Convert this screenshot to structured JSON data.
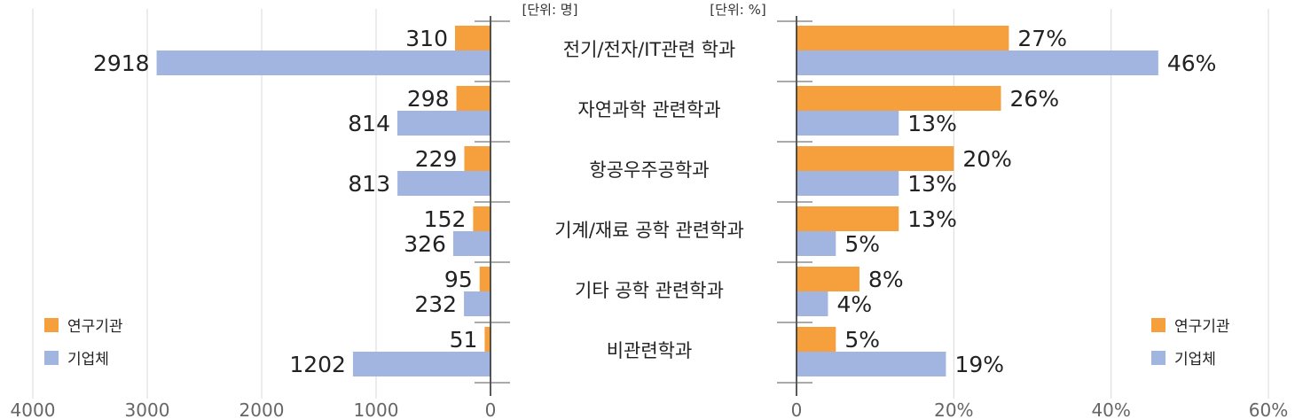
{
  "chart_data": [
    {
      "type": "bar",
      "orientation": "horizontal",
      "direction": "leftward",
      "unit_label": "[단위: 명]",
      "categories": [
        "전기/전자/IT관련 학과",
        "자연과학 관련학과",
        "항공우주공학과",
        "기계/재료 공학 관련학과",
        "기타 공학 관련학과",
        "비관련학과"
      ],
      "series": [
        {
          "name": "연구기관",
          "color": "#f5a03c",
          "values": [
            310,
            298,
            229,
            152,
            95,
            51
          ],
          "labels": [
            "310",
            "298",
            "229",
            "152",
            "95",
            "51"
          ]
        },
        {
          "name": "기업체",
          "color": "#a2b4e0",
          "values": [
            2918,
            814,
            813,
            326,
            232,
            1202
          ],
          "labels": [
            "2918",
            "814",
            "813",
            "326",
            "232",
            "1202"
          ]
        }
      ],
      "xlim": [
        0,
        4000
      ],
      "ticks": [
        "4000",
        "3000",
        "2000",
        "1000",
        "0"
      ],
      "grid": true,
      "legend": "bottom-left"
    },
    {
      "type": "bar",
      "orientation": "horizontal",
      "unit_label": "[단위: %]",
      "categories": [
        "전기/전자/IT관련 학과",
        "자연과학 관련학과",
        "항공우주공학과",
        "기계/재료 공학 관련학과",
        "기타 공학 관련학과",
        "비관련학과"
      ],
      "series": [
        {
          "name": "연구기관",
          "color": "#f5a03c",
          "values": [
            27,
            26,
            20,
            13,
            8,
            5
          ],
          "labels": [
            "27%",
            "26%",
            "20%",
            "13%",
            "8%",
            "5%"
          ]
        },
        {
          "name": "기업체",
          "color": "#a2b4e0",
          "values": [
            46,
            13,
            13,
            5,
            4,
            19
          ],
          "labels": [
            "46%",
            "13%",
            "13%",
            "5%",
            "4%",
            "19%"
          ]
        }
      ],
      "xlim": [
        0,
        60
      ],
      "ticks": [
        "0",
        "20%",
        "40%",
        "60%"
      ],
      "grid": true,
      "legend": "bottom-right"
    }
  ]
}
